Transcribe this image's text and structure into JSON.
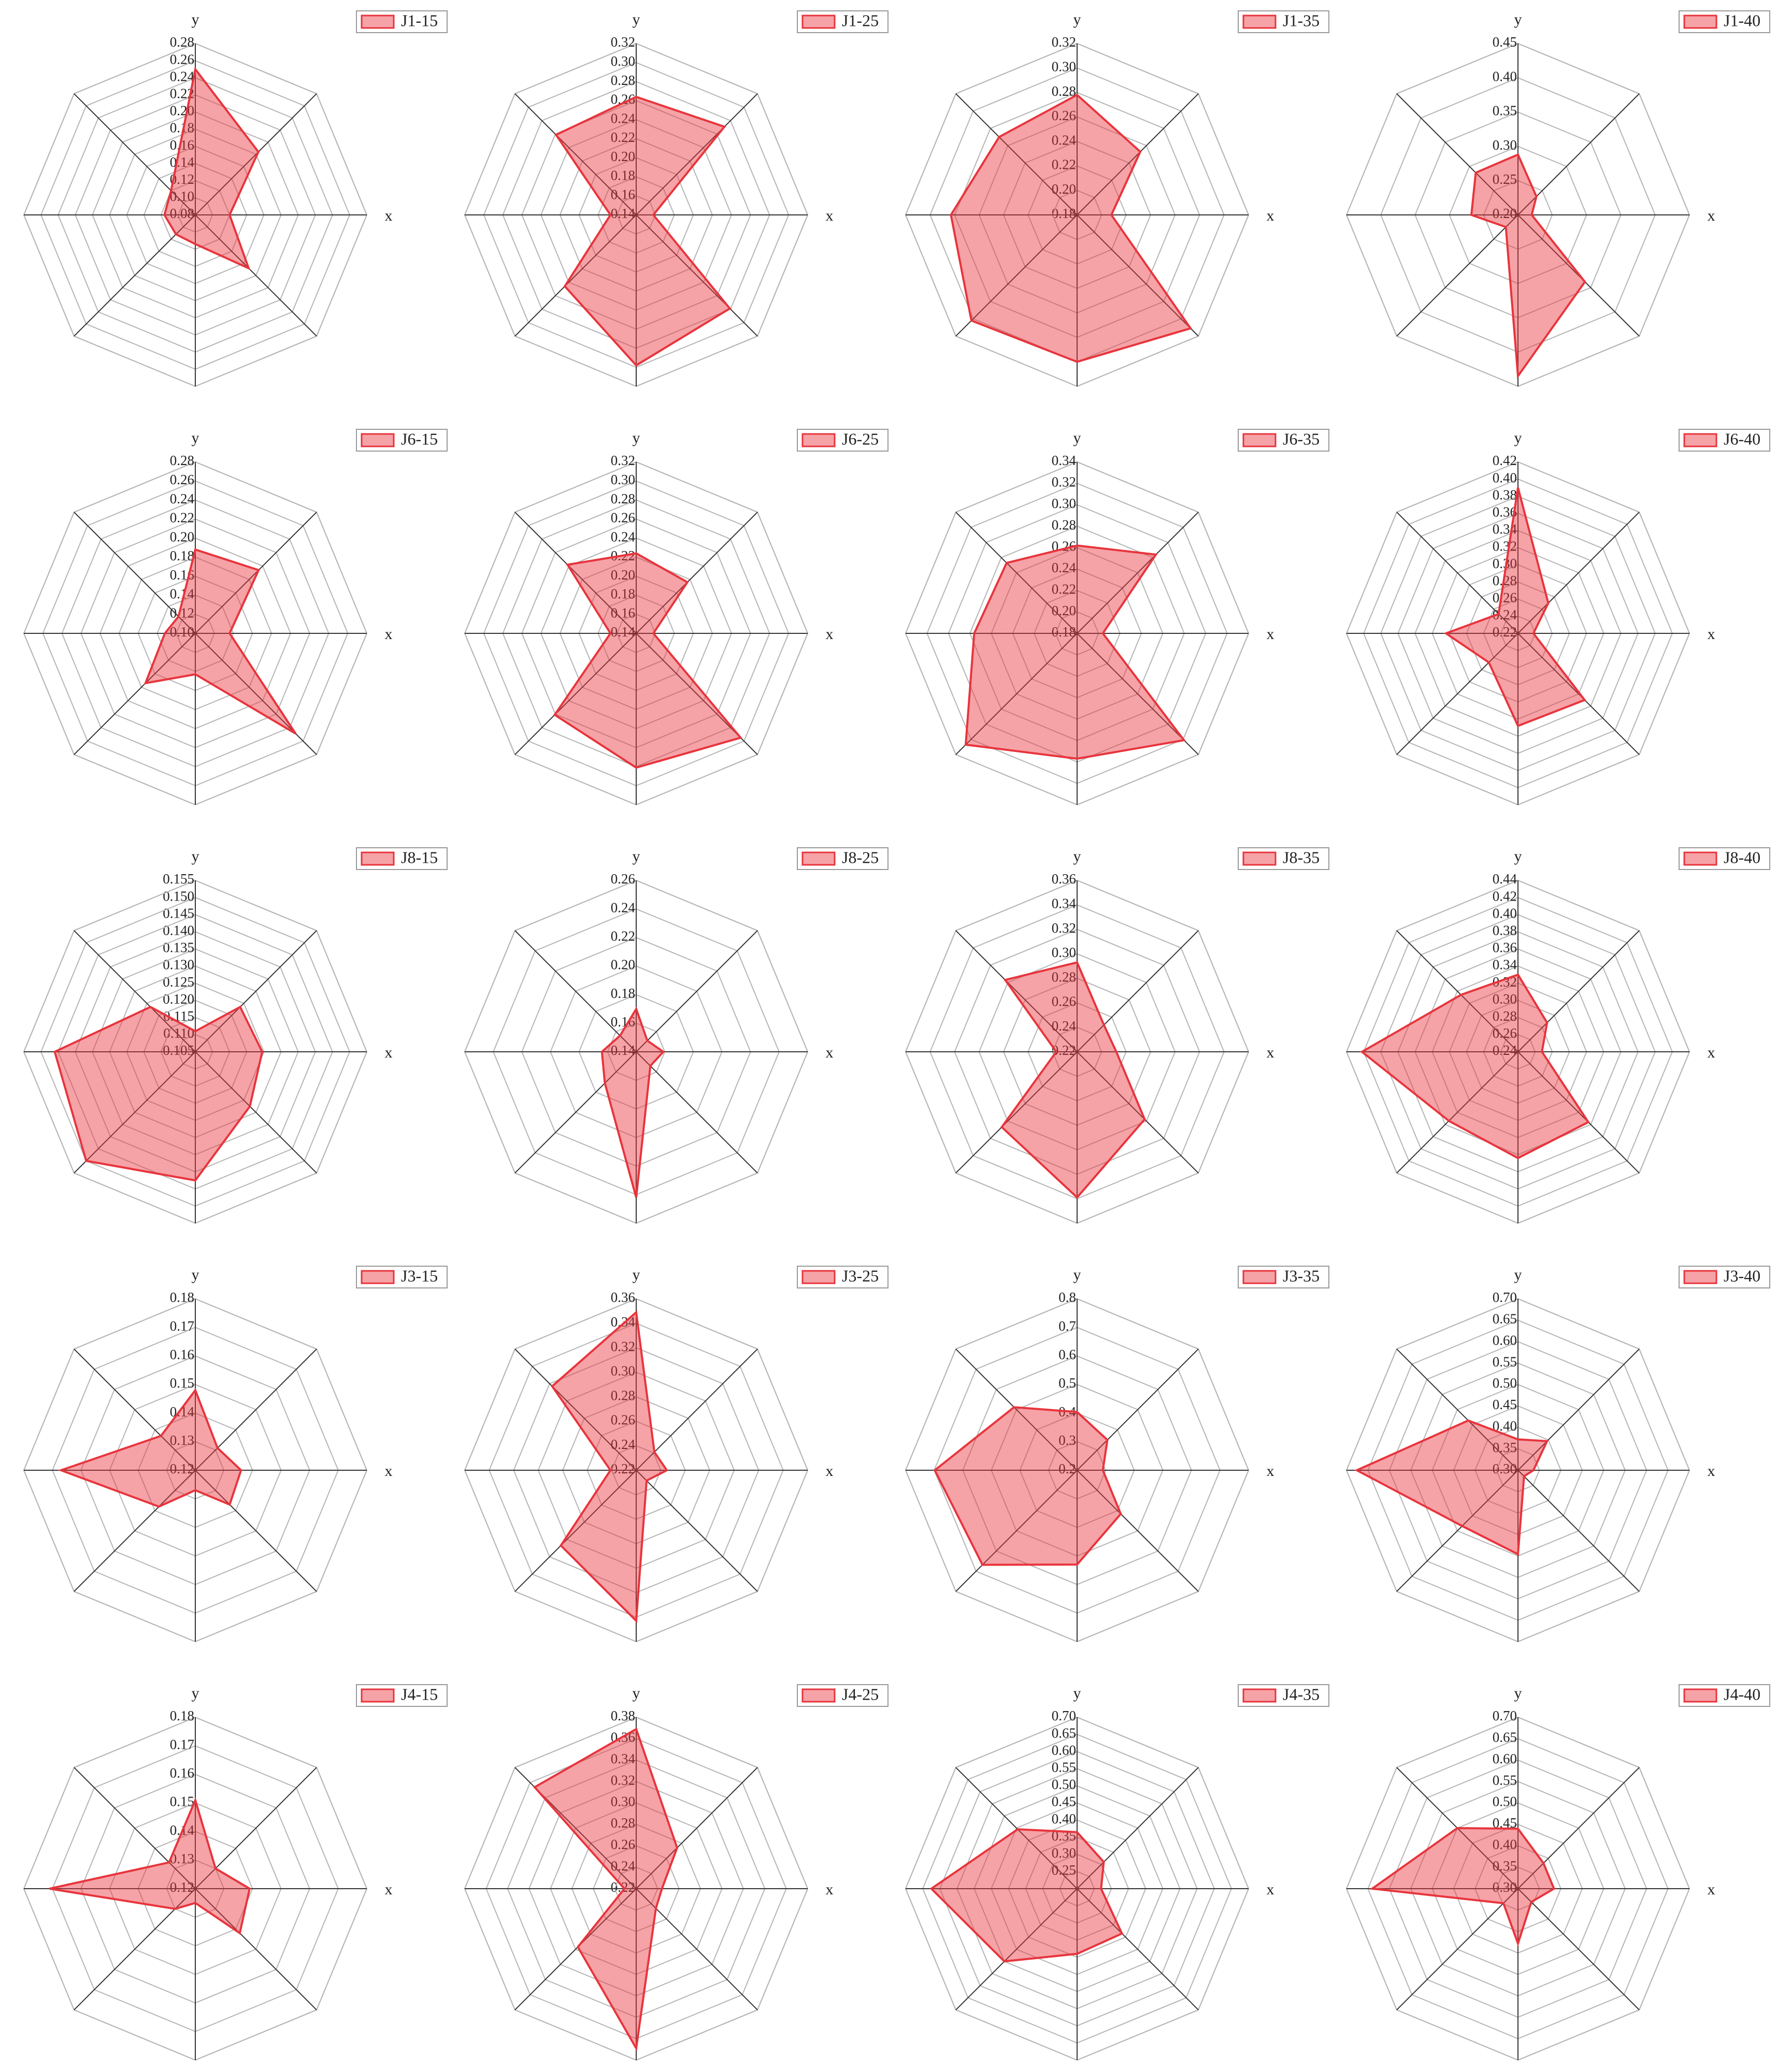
{
  "chart_data": [
    {
      "type": "radar",
      "x_label": "x",
      "y_label": "y",
      "ylim": [
        0.08,
        0.28
      ],
      "yticks": [
        0.08,
        {
          "value": 0.1,
          "label": "0.10"
        },
        0.12,
        0.14,
        0.16,
        0.18,
        {
          "value": 0.2,
          "label": "0.20"
        },
        0.22,
        0.24,
        0.26,
        0.28
      ],
      "series": [
        {
          "name": "J1-15",
          "color": "#e8343c",
          "values": [
            0.12,
            0.184,
            0.25,
            0.12,
            0.116,
            0.112,
            0.114,
            0.168
          ]
        }
      ]
    },
    {
      "type": "radar",
      "x_label": "x",
      "y_label": "y",
      "ylim": [
        0.14,
        0.32
      ],
      "yticks": [
        0.14,
        0.16,
        0.18,
        {
          "value": 0.2,
          "label": "0.20"
        },
        0.22,
        0.24,
        0.26,
        0.28,
        {
          "value": 0.3,
          "label": "0.30"
        },
        0.32
      ],
      "series": [
        {
          "name": "J1-25",
          "color": "#e8343c",
          "values": [
            0.158,
            0.271,
            0.264,
            0.259,
            0.167,
            0.246,
            0.298,
            0.279
          ]
        }
      ]
    },
    {
      "type": "radar",
      "x_label": "x",
      "y_label": "y",
      "ylim": [
        0.18,
        0.32
      ],
      "yticks": [
        0.18,
        {
          "value": 0.2,
          "label": "0.20"
        },
        0.22,
        0.24,
        0.26,
        0.28,
        {
          "value": 0.3,
          "label": "0.30"
        },
        0.32
      ],
      "series": [
        {
          "name": "J1-35",
          "color": "#e8343c",
          "values": [
            0.208,
            0.253,
            0.278,
            0.27,
            0.283,
            0.302,
            0.3,
            0.311
          ]
        }
      ]
    },
    {
      "type": "radar",
      "x_label": "x",
      "y_label": "y",
      "ylim": [
        0.2,
        0.45
      ],
      "yticks": [
        {
          "value": 0.2,
          "label": "0.20"
        },
        0.25,
        {
          "value": 0.3,
          "label": "0.30"
        },
        0.35,
        {
          "value": 0.4,
          "label": "0.40"
        },
        0.45
      ],
      "series": [
        {
          "name": "J1-40",
          "color": "#e8343c",
          "values": [
            0.22,
            0.238,
            0.288,
            0.287,
            0.268,
            0.225,
            0.435,
            0.338
          ]
        }
      ]
    },
    {
      "type": "radar",
      "x_label": "x",
      "y_label": "y",
      "ylim": [
        0.1,
        0.28
      ],
      "yticks": [
        {
          "value": 0.1,
          "label": "0.10"
        },
        0.12,
        0.14,
        0.16,
        0.18,
        {
          "value": 0.2,
          "label": "0.20"
        },
        0.22,
        0.24,
        0.26,
        0.28
      ],
      "series": [
        {
          "name": "J6-15",
          "color": "#e8343c",
          "values": [
            0.136,
            0.194,
            0.188,
            0.125,
            0.132,
            0.174,
            0.143,
            0.249
          ]
        }
      ]
    },
    {
      "type": "radar",
      "x_label": "x",
      "y_label": "y",
      "ylim": [
        0.14,
        0.32
      ],
      "yticks": [
        0.14,
        0.16,
        0.18,
        {
          "value": 0.2,
          "label": "0.20"
        },
        0.22,
        0.24,
        0.26,
        0.28,
        {
          "value": 0.3,
          "label": "0.30"
        },
        0.32
      ],
      "series": [
        {
          "name": "J6-25",
          "color": "#e8343c",
          "values": [
            0.158,
            0.216,
            0.224,
            0.242,
            0.167,
            0.261,
            0.281,
            0.295
          ]
        }
      ]
    },
    {
      "type": "radar",
      "x_label": "x",
      "y_label": "y",
      "ylim": [
        0.18,
        0.34
      ],
      "yticks": [
        0.18,
        {
          "value": 0.2,
          "label": "0.20"
        },
        0.22,
        0.24,
        0.26,
        0.28,
        {
          "value": 0.3,
          "label": "0.30"
        },
        0.32,
        0.34
      ],
      "series": [
        {
          "name": "J6-35",
          "color": "#e8343c",
          "values": [
            0.204,
            0.284,
            0.262,
            0.273,
            0.276,
            0.327,
            0.297,
            0.321
          ]
        }
      ]
    },
    {
      "type": "radar",
      "x_label": "x",
      "y_label": "y",
      "ylim": [
        0.22,
        0.42
      ],
      "yticks": [
        0.22,
        0.24,
        0.26,
        0.28,
        {
          "value": 0.3,
          "label": "0.30"
        },
        0.32,
        0.34,
        0.36,
        0.38,
        {
          "value": 0.4,
          "label": "0.40"
        },
        0.42
      ],
      "series": [
        {
          "name": "J6-40",
          "color": "#e8343c",
          "values": [
            0.238,
            0.27,
            0.39,
            0.252,
            0.304,
            0.268,
            0.328,
            0.33
          ]
        }
      ]
    },
    {
      "type": "radar",
      "x_label": "x",
      "y_label": "y",
      "ylim": [
        0.105,
        0.155
      ],
      "yticks": [
        0.105,
        {
          "value": 0.11,
          "label": "0.110"
        },
        0.115,
        {
          "value": 0.12,
          "label": "0.120"
        },
        0.125,
        {
          "value": 0.13,
          "label": "0.130"
        },
        0.135,
        {
          "value": 0.14,
          "label": "0.140"
        },
        0.145,
        {
          "value": 0.15,
          "label": "0.150"
        },
        0.155
      ],
      "series": [
        {
          "name": "J8-15",
          "color": "#e8343c",
          "values": [
            0.1245,
            0.1235,
            0.111,
            0.1235,
            0.146,
            0.15,
            0.1425,
            0.1275
          ]
        }
      ]
    },
    {
      "type": "radar",
      "x_label": "x",
      "y_label": "y",
      "ylim": [
        0.14,
        0.26
      ],
      "yticks": [
        0.14,
        0.16,
        0.18,
        {
          "value": 0.2,
          "label": "0.20"
        },
        0.22,
        0.24,
        0.26
      ],
      "series": [
        {
          "name": "J8-25",
          "color": "#e8343c",
          "values": [
            0.159,
            0.151,
            0.17,
            0.156,
            0.164,
            0.171,
            0.242,
            0.154
          ]
        }
      ]
    },
    {
      "type": "radar",
      "x_label": "x",
      "y_label": "y",
      "ylim": [
        0.22,
        0.36
      ],
      "yticks": [
        0.22,
        0.24,
        0.26,
        0.28,
        {
          "value": 0.3,
          "label": "0.30"
        },
        0.32,
        0.34,
        0.36
      ],
      "series": [
        {
          "name": "J8-35",
          "color": "#e8343c",
          "values": [
            0.252,
            0.251,
            0.293,
            0.303,
            0.237,
            0.307,
            0.339,
            0.298
          ]
        }
      ]
    },
    {
      "type": "radar",
      "x_label": "x",
      "y_label": "y",
      "ylim": [
        0.24,
        0.44
      ],
      "yticks": [
        0.24,
        0.26,
        0.28,
        {
          "value": 0.3,
          "label": "0.30"
        },
        0.32,
        0.34,
        0.36,
        0.38,
        {
          "value": 0.4,
          "label": "0.40"
        },
        0.42,
        0.44
      ],
      "series": [
        {
          "name": "J8-40",
          "color": "#e8343c",
          "values": [
            0.268,
            0.288,
            0.33,
            0.334,
            0.422,
            0.354,
            0.364,
            0.356
          ]
        }
      ]
    },
    {
      "type": "radar",
      "x_label": "x",
      "y_label": "y",
      "ylim": [
        0.12,
        0.18
      ],
      "yticks": [
        0.12,
        0.13,
        0.14,
        0.15,
        0.16,
        0.17,
        0.18
      ],
      "series": [
        {
          "name": "J3-15",
          "color": "#e8343c",
          "values": [
            0.136,
            0.131,
            0.148,
            0.137,
            0.167,
            0.138,
            0.127,
            0.137
          ]
        }
      ]
    },
    {
      "type": "radar",
      "x_label": "x",
      "y_label": "y",
      "ylim": [
        0.22,
        0.36
      ],
      "yticks": [
        0.22,
        0.24,
        0.26,
        0.28,
        {
          "value": 0.3,
          "label": "0.30"
        },
        0.32,
        0.34,
        0.36
      ],
      "series": [
        {
          "name": "J3-25",
          "color": "#e8343c",
          "values": [
            0.245,
            0.241,
            0.349,
            0.317,
            0.241,
            0.307,
            0.343,
            0.232
          ]
        }
      ]
    },
    {
      "type": "radar",
      "x_label": "x",
      "y_label": "y",
      "ylim": [
        0.2,
        0.8
      ],
      "yticks": [
        0.2,
        0.3,
        0.4,
        0.5,
        0.6,
        0.7,
        0.8
      ],
      "series": [
        {
          "name": "J3-35",
          "color": "#e8343c",
          "values": [
            0.29,
            0.35,
            0.404,
            0.512,
            0.698,
            0.668,
            0.53,
            0.416
          ]
        }
      ]
    },
    {
      "type": "radar",
      "x_label": "x",
      "y_label": "y",
      "ylim": [
        0.3,
        0.7
      ],
      "yticks": [
        {
          "value": 0.3,
          "label": "0.30"
        },
        0.35,
        {
          "value": 0.4,
          "label": "0.40"
        },
        0.45,
        {
          "value": 0.5,
          "label": "0.50"
        },
        0.55,
        {
          "value": 0.6,
          "label": "0.60"
        },
        0.65,
        {
          "value": 0.7,
          "label": "0.70"
        }
      ],
      "series": [
        {
          "name": "J3-40",
          "color": "#e8343c",
          "values": [
            0.336,
            0.396,
            0.372,
            0.464,
            0.676,
            0.484,
            0.496,
            0.32
          ]
        }
      ]
    },
    {
      "type": "radar",
      "x_label": "x",
      "y_label": "y",
      "ylim": [
        0.12,
        0.18
      ],
      "yticks": [
        0.12,
        0.13,
        0.14,
        0.15,
        0.16,
        0.17,
        0.18
      ],
      "series": [
        {
          "name": "J4-15",
          "color": "#e8343c",
          "values": [
            0.139,
            0.13,
            0.151,
            0.133,
            0.171,
            0.13,
            0.125,
            0.142
          ]
        }
      ]
    },
    {
      "type": "radar",
      "x_label": "x",
      "y_label": "y",
      "ylim": [
        0.22,
        0.38
      ],
      "yticks": [
        0.22,
        0.24,
        0.26,
        0.28,
        {
          "value": 0.3,
          "label": "0.30"
        },
        0.32,
        0.34,
        0.36,
        0.38
      ],
      "series": [
        {
          "name": "J4-25",
          "color": "#e8343c",
          "values": [
            0.244,
            0.274,
            0.369,
            0.354,
            0.231,
            0.297,
            0.369,
            0.246
          ]
        }
      ]
    },
    {
      "type": "radar",
      "x_label": "x",
      "y_label": "y",
      "ylim": [
        0.2,
        0.7
      ],
      "yticks": [
        0.25,
        {
          "value": 0.3,
          "label": "0.30"
        },
        0.35,
        {
          "value": 0.4,
          "label": "0.40"
        },
        0.45,
        {
          "value": 0.5,
          "label": "0.50"
        },
        0.55,
        {
          "value": 0.6,
          "label": "0.60"
        },
        0.65,
        {
          "value": 0.7,
          "label": "0.70"
        }
      ],
      "series": [
        {
          "name": "J4-35",
          "color": "#e8343c",
          "values": [
            0.27,
            0.31,
            0.365,
            0.445,
            0.625,
            0.5,
            0.39,
            0.385
          ]
        }
      ]
    },
    {
      "type": "radar",
      "x_label": "x",
      "y_label": "y",
      "ylim": [
        0.3,
        0.7
      ],
      "yticks": [
        {
          "value": 0.3,
          "label": "0.30"
        },
        0.35,
        {
          "value": 0.4,
          "label": "0.40"
        },
        0.45,
        {
          "value": 0.5,
          "label": "0.50"
        },
        0.55,
        {
          "value": 0.6,
          "label": "0.60"
        },
        0.65,
        {
          "value": 0.7,
          "label": "0.70"
        }
      ],
      "series": [
        {
          "name": "J4-40",
          "color": "#e8343c",
          "values": [
            0.384,
            0.384,
            0.44,
            0.5,
            0.64,
            0.348,
            0.428,
            0.344
          ]
        }
      ]
    }
  ]
}
